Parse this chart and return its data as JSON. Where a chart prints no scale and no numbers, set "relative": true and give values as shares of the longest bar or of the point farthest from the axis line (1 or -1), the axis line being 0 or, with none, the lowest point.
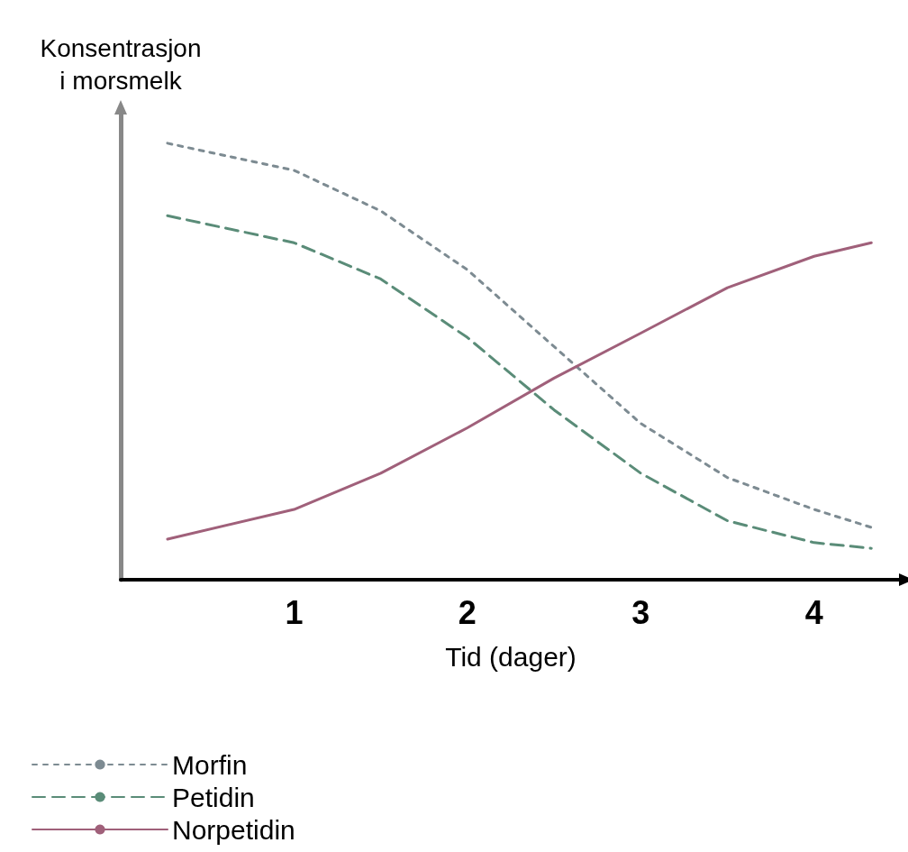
{
  "chart_data": {
    "type": "line",
    "xlabel": "Tid (dager)",
    "ylabel": "Konsentrasjon\ni morsmelk",
    "relative": true,
    "x": [
      0.27,
      1,
      1.5,
      2,
      2.5,
      3,
      3.5,
      4,
      4.33
    ],
    "xlim": [
      0,
      4.5
    ],
    "xticks": [
      1,
      2,
      3,
      4
    ],
    "grid": false,
    "legend": "bottom left",
    "marker": "none",
    "series": [
      {
        "name": "Morfin",
        "color": "#7d8b92",
        "line_style": "dotted",
        "values": [
          1,
          0.938,
          0.845,
          0.71,
          0.534,
          0.358,
          0.234,
          0.161,
          0.12
        ]
      },
      {
        "name": "Petidin",
        "color": "#5a8c78",
        "line_style": "dashed",
        "values": [
          0.834,
          0.772,
          0.689,
          0.555,
          0.389,
          0.244,
          0.135,
          0.085,
          0.072
        ]
      },
      {
        "name": "Norpetidin",
        "color": "#a0607a",
        "line_style": "solid",
        "values": [
          0.093,
          0.161,
          0.244,
          0.348,
          0.462,
          0.565,
          0.669,
          0.741,
          0.772
        ]
      }
    ]
  }
}
